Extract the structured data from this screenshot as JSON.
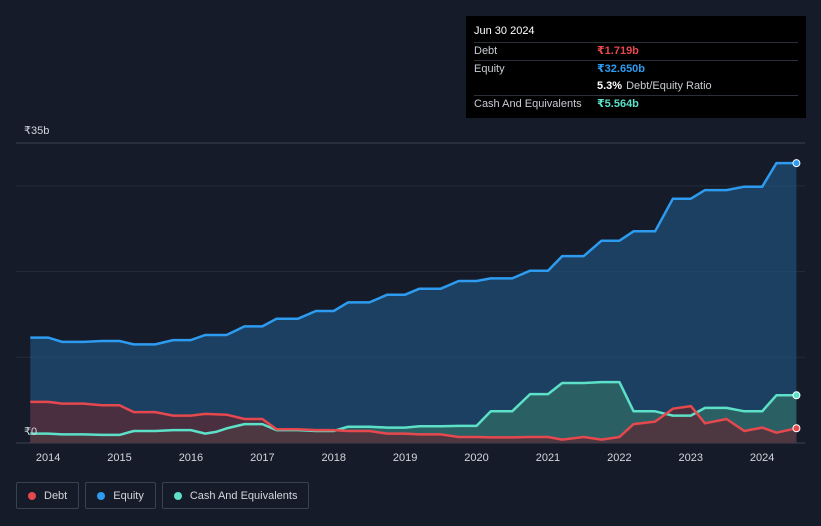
{
  "tooltip": {
    "date": "Jun 30 2024",
    "debt_label": "Debt",
    "debt_value": "₹1.719b",
    "equity_label": "Equity",
    "equity_value": "₹32.650b",
    "ratio_value": "5.3%",
    "ratio_label": "Debt/Equity Ratio",
    "cash_label": "Cash And Equivalents",
    "cash_value": "₹5.564b"
  },
  "legend": [
    {
      "label": "Debt",
      "color": "#e5484d"
    },
    {
      "label": "Equity",
      "color": "#2d9bf0"
    },
    {
      "label": "Cash And Equivalents",
      "color": "#5de0c8"
    }
  ],
  "chart_data": {
    "type": "area",
    "title": "",
    "xlabel": "",
    "ylabel": "",
    "ylim": [
      0,
      35
    ],
    "y_unit": "₹b",
    "y_tick_labels": [
      {
        "value": 35,
        "label": "₹35b"
      },
      {
        "value": 0,
        "label": "₹0"
      }
    ],
    "gridlines": [
      10,
      20,
      30
    ],
    "xlim": [
      2013.55,
      2024.6
    ],
    "x_ticks": [
      2014,
      2015,
      2016,
      2017,
      2018,
      2019,
      2020,
      2021,
      2022,
      2023,
      2024
    ],
    "step": true,
    "series": [
      {
        "name": "Equity",
        "color": "#2d9bf0",
        "fill": "#1f4d75",
        "points": [
          [
            2013.75,
            12.3
          ],
          [
            2014.0,
            12.3
          ],
          [
            2014.2,
            11.8
          ],
          [
            2014.5,
            11.8
          ],
          [
            2014.75,
            11.9
          ],
          [
            2015.0,
            11.9
          ],
          [
            2015.2,
            11.5
          ],
          [
            2015.5,
            11.5
          ],
          [
            2015.75,
            12.0
          ],
          [
            2016.0,
            12.0
          ],
          [
            2016.2,
            12.6
          ],
          [
            2016.5,
            12.6
          ],
          [
            2016.75,
            13.6
          ],
          [
            2017.0,
            13.6
          ],
          [
            2017.2,
            14.5
          ],
          [
            2017.5,
            14.5
          ],
          [
            2017.75,
            15.4
          ],
          [
            2018.0,
            15.4
          ],
          [
            2018.2,
            16.4
          ],
          [
            2018.5,
            16.4
          ],
          [
            2018.75,
            17.3
          ],
          [
            2019.0,
            17.3
          ],
          [
            2019.2,
            18.0
          ],
          [
            2019.5,
            18.0
          ],
          [
            2019.75,
            18.9
          ],
          [
            2020.0,
            18.9
          ],
          [
            2020.2,
            19.2
          ],
          [
            2020.5,
            19.2
          ],
          [
            2020.75,
            20.1
          ],
          [
            2021.0,
            20.1
          ],
          [
            2021.2,
            21.8
          ],
          [
            2021.5,
            21.8
          ],
          [
            2021.75,
            23.6
          ],
          [
            2022.0,
            23.6
          ],
          [
            2022.2,
            24.7
          ],
          [
            2022.5,
            24.7
          ],
          [
            2022.75,
            28.5
          ],
          [
            2023.0,
            28.5
          ],
          [
            2023.2,
            29.5
          ],
          [
            2023.5,
            29.5
          ],
          [
            2023.75,
            29.9
          ],
          [
            2024.0,
            29.9
          ],
          [
            2024.2,
            32.65
          ],
          [
            2024.48,
            32.65
          ]
        ]
      },
      {
        "name": "Cash And Equivalents",
        "color": "#5de0c8",
        "fill": "#2f6b66",
        "points": [
          [
            2013.75,
            1.1
          ],
          [
            2014.0,
            1.1
          ],
          [
            2014.2,
            1.0
          ],
          [
            2014.5,
            1.0
          ],
          [
            2014.75,
            0.95
          ],
          [
            2015.0,
            0.95
          ],
          [
            2015.2,
            1.4
          ],
          [
            2015.5,
            1.4
          ],
          [
            2015.75,
            1.5
          ],
          [
            2016.0,
            1.5
          ],
          [
            2016.2,
            1.1
          ],
          [
            2016.35,
            1.3
          ],
          [
            2016.5,
            1.7
          ],
          [
            2016.75,
            2.2
          ],
          [
            2017.0,
            2.2
          ],
          [
            2017.2,
            1.5
          ],
          [
            2017.5,
            1.5
          ],
          [
            2017.75,
            1.4
          ],
          [
            2018.0,
            1.4
          ],
          [
            2018.2,
            1.9
          ],
          [
            2018.5,
            1.9
          ],
          [
            2018.75,
            1.8
          ],
          [
            2019.0,
            1.8
          ],
          [
            2019.2,
            1.95
          ],
          [
            2019.5,
            1.95
          ],
          [
            2019.75,
            2.0
          ],
          [
            2020.0,
            2.0
          ],
          [
            2020.2,
            3.7
          ],
          [
            2020.5,
            3.7
          ],
          [
            2020.75,
            5.7
          ],
          [
            2021.0,
            5.7
          ],
          [
            2021.2,
            7.0
          ],
          [
            2021.5,
            7.0
          ],
          [
            2021.75,
            7.1
          ],
          [
            2022.0,
            7.1
          ],
          [
            2022.2,
            3.7
          ],
          [
            2022.5,
            3.7
          ],
          [
            2022.75,
            3.2
          ],
          [
            2023.0,
            3.2
          ],
          [
            2023.2,
            4.1
          ],
          [
            2023.5,
            4.1
          ],
          [
            2023.75,
            3.7
          ],
          [
            2024.0,
            3.7
          ],
          [
            2024.2,
            5.564
          ],
          [
            2024.48,
            5.564
          ]
        ]
      },
      {
        "name": "Debt",
        "color": "#e5484d",
        "fill": "#5a2a35",
        "points": [
          [
            2013.75,
            4.8
          ],
          [
            2014.0,
            4.8
          ],
          [
            2014.2,
            4.6
          ],
          [
            2014.5,
            4.6
          ],
          [
            2014.75,
            4.4
          ],
          [
            2015.0,
            4.4
          ],
          [
            2015.2,
            3.6
          ],
          [
            2015.5,
            3.6
          ],
          [
            2015.75,
            3.2
          ],
          [
            2016.0,
            3.2
          ],
          [
            2016.2,
            3.4
          ],
          [
            2016.5,
            3.3
          ],
          [
            2016.75,
            2.8
          ],
          [
            2017.0,
            2.8
          ],
          [
            2017.2,
            1.6
          ],
          [
            2017.5,
            1.6
          ],
          [
            2017.75,
            1.5
          ],
          [
            2018.0,
            1.5
          ],
          [
            2018.2,
            1.4
          ],
          [
            2018.5,
            1.4
          ],
          [
            2018.75,
            1.1
          ],
          [
            2019.0,
            1.1
          ],
          [
            2019.2,
            1.0
          ],
          [
            2019.5,
            1.0
          ],
          [
            2019.75,
            0.7
          ],
          [
            2020.0,
            0.7
          ],
          [
            2020.2,
            0.65
          ],
          [
            2020.5,
            0.65
          ],
          [
            2020.75,
            0.7
          ],
          [
            2021.0,
            0.7
          ],
          [
            2021.2,
            0.4
          ],
          [
            2021.5,
            0.7
          ],
          [
            2021.75,
            0.4
          ],
          [
            2022.0,
            0.7
          ],
          [
            2022.2,
            2.2
          ],
          [
            2022.5,
            2.5
          ],
          [
            2022.75,
            4.0
          ],
          [
            2023.0,
            4.3
          ],
          [
            2023.2,
            2.3
          ],
          [
            2023.5,
            2.8
          ],
          [
            2023.75,
            1.4
          ],
          [
            2024.0,
            1.8
          ],
          [
            2024.2,
            1.2
          ],
          [
            2024.48,
            1.719
          ]
        ]
      }
    ]
  }
}
